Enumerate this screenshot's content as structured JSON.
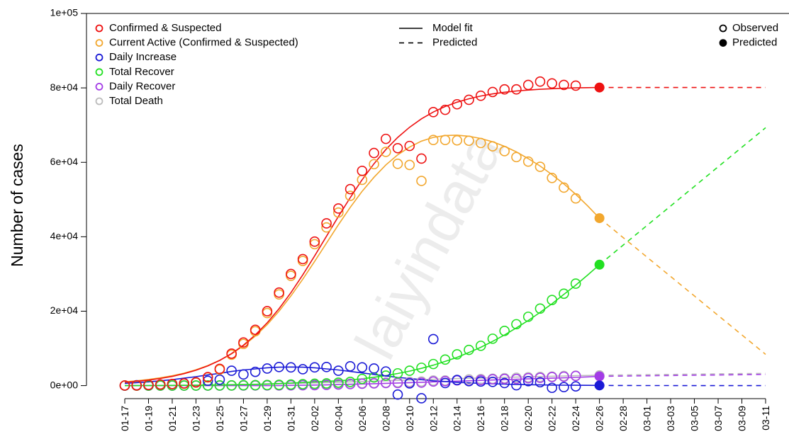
{
  "chart_data": {
    "type": "line",
    "y_label": "Number of cases",
    "watermark": "laiyindata",
    "categories": [
      "01-17",
      null,
      "01-19",
      null,
      "01-21",
      null,
      "01-23",
      null,
      "01-25",
      null,
      "01-27",
      null,
      "01-29",
      null,
      "01-31",
      null,
      "02-02",
      null,
      "02-04",
      null,
      "02-06",
      null,
      "02-08",
      null,
      "02-10",
      null,
      "02-12",
      null,
      "02-14",
      null,
      "02-16",
      null,
      "02-18",
      null,
      "02-20",
      null,
      "02-22",
      null,
      "02-24",
      null,
      "02-26",
      null,
      "02-28",
      null,
      "03-01",
      null,
      "03-03",
      null,
      "03-05",
      null,
      "03-07",
      null,
      "03-09",
      null,
      "03-11"
    ],
    "ylim": [
      -3500,
      100000
    ],
    "yticks": [
      {
        "value": 0,
        "label": "0e+00"
      },
      {
        "value": 20000,
        "label": "2e+04"
      },
      {
        "value": 40000,
        "label": "4e+04"
      },
      {
        "value": 60000,
        "label": "6e+04"
      },
      {
        "value": 80000,
        "label": "8e+04"
      },
      {
        "value": 100000,
        "label": "1e+05"
      }
    ],
    "line_legend": [
      "Model fit",
      "Predicted"
    ],
    "point_legend": [
      "Observed",
      "Predicted"
    ],
    "series": [
      {
        "name": "Confirmed & Suspected",
        "color": "#ee1111",
        "observed": [
          45,
          62,
          200,
          300,
          440,
          570,
          900,
          2300,
          4500,
          8600,
          11600,
          15000,
          20000,
          25000,
          30000,
          34000,
          38700,
          43600,
          47600,
          52800,
          57700,
          62500,
          66300,
          63800,
          64400,
          61000,
          73500,
          74100,
          75600,
          76800,
          77900,
          78900,
          79600,
          79600,
          80800,
          81700,
          81200,
          80800,
          80600,
          null,
          null,
          null,
          null,
          null,
          null,
          null,
          null,
          null,
          null,
          null,
          null,
          null,
          null,
          null,
          null,
          null
        ],
        "fit": [
          878,
          1140,
          1480,
          1920,
          2480,
          3210,
          4130,
          5300,
          6770,
          8610,
          10870,
          13610,
          16870,
          20660,
          24980,
          29750,
          34870,
          40150,
          45430,
          50540,
          55300,
          59620,
          63430,
          66690,
          69420,
          71690,
          73520,
          75000,
          76160,
          77080,
          77810,
          78380,
          78820,
          79160,
          79420,
          79620,
          79780,
          79900,
          80000,
          80070,
          80120,
          null,
          null,
          null,
          null,
          null,
          null,
          null,
          null,
          null,
          null,
          null,
          null,
          null,
          null
        ],
        "predicted": [
          null,
          null,
          null,
          null,
          null,
          null,
          null,
          null,
          null,
          null,
          null,
          null,
          null,
          null,
          null,
          null,
          null,
          null,
          null,
          null,
          null,
          null,
          null,
          null,
          null,
          null,
          null,
          null,
          null,
          null,
          null,
          null,
          null,
          null,
          null,
          null,
          null,
          null,
          null,
          null,
          80100,
          80100,
          80100,
          80100,
          80100,
          80100,
          80100,
          80100,
          80100,
          80100,
          80100,
          80100,
          80100,
          80100,
          80100
        ]
      },
      {
        "name": "Current Active (Confirmed & Suspected)",
        "color": "#f2a72e",
        "observed": [
          40,
          60,
          190,
          290,
          420,
          550,
          800,
          2200,
          4300,
          8300,
          11200,
          14600,
          19500,
          24500,
          29500,
          33500,
          38000,
          42500,
          46500,
          51000,
          55300,
          59500,
          62800,
          59600,
          59300,
          55000,
          66000,
          66000,
          65900,
          65800,
          65200,
          64300,
          63000,
          61400,
          60200,
          58800,
          55800,
          53200,
          50300,
          null,
          null,
          null,
          null,
          null,
          null,
          null,
          null,
          null,
          null,
          null,
          null,
          null,
          null,
          null,
          null,
          null
        ],
        "fit": [
          1000,
          1300,
          1650,
          2100,
          2650,
          3350,
          4250,
          5400,
          6800,
          8550,
          10700,
          13300,
          16400,
          20000,
          24100,
          28600,
          33400,
          38300,
          43200,
          47900,
          52200,
          56000,
          59300,
          62000,
          64100,
          65700,
          66700,
          67200,
          67300,
          67000,
          66400,
          65500,
          64300,
          62800,
          61000,
          59000,
          56700,
          54200,
          51400,
          48300,
          45000,
          null,
          null,
          null,
          null,
          null,
          null,
          null,
          null,
          null,
          null,
          null,
          null,
          null,
          null
        ],
        "predicted": [
          null,
          null,
          null,
          null,
          null,
          null,
          null,
          null,
          null,
          null,
          null,
          null,
          null,
          null,
          null,
          null,
          null,
          null,
          null,
          null,
          null,
          null,
          null,
          null,
          null,
          null,
          null,
          null,
          null,
          null,
          null,
          null,
          null,
          null,
          null,
          null,
          null,
          null,
          null,
          null,
          45000,
          42390,
          39770,
          37160,
          34540,
          31930,
          29310,
          26700,
          24090,
          21470,
          18860,
          16240,
          13630,
          11010,
          8400
        ]
      },
      {
        "name": "Daily Increase",
        "color": "#1a1ad6",
        "observed": [
          20,
          100,
          150,
          300,
          400,
          600,
          800,
          1300,
          1600,
          4000,
          3000,
          3700,
          4600,
          5000,
          4900,
          4400,
          4900,
          5000,
          4000,
          5200,
          4900,
          4600,
          3800,
          -2400,
          600,
          -3400,
          12500,
          700,
          1500,
          1200,
          1100,
          1000,
          700,
          100,
          1200,
          900,
          -600,
          -400,
          -200,
          null,
          null,
          null,
          null,
          null,
          null,
          null,
          null,
          null,
          null,
          null,
          null,
          null,
          null,
          null,
          null,
          null
        ],
        "fit": [
          600,
          800,
          1000,
          1300,
          1600,
          2000,
          2400,
          2900,
          3300,
          3800,
          4200,
          4500,
          4800,
          4950,
          5000,
          4950,
          4800,
          4500,
          4200,
          3800,
          3400,
          3000,
          2600,
          2200,
          1900,
          1600,
          1300,
          1100,
          900,
          750,
          600,
          500,
          400,
          320,
          250,
          200,
          160,
          120,
          90,
          70,
          50,
          null,
          null,
          null,
          null,
          null,
          null,
          null,
          null,
          null,
          null,
          null,
          null,
          null,
          null
        ],
        "predicted": [
          null,
          null,
          null,
          null,
          null,
          null,
          null,
          null,
          null,
          null,
          null,
          null,
          null,
          null,
          null,
          null,
          null,
          null,
          null,
          null,
          null,
          null,
          null,
          null,
          null,
          null,
          null,
          null,
          null,
          null,
          null,
          null,
          null,
          null,
          null,
          null,
          null,
          null,
          null,
          null,
          50,
          40,
          30,
          25,
          20,
          15,
          12,
          10,
          8,
          6,
          5,
          4,
          3,
          2,
          2
        ]
      },
      {
        "name": "Total Recover",
        "color": "#22e022",
        "observed": [
          0,
          0,
          0,
          25,
          25,
          30,
          35,
          40,
          50,
          60,
          100,
          120,
          150,
          200,
          300,
          400,
          500,
          600,
          800,
          1000,
          1800,
          2200,
          2700,
          3300,
          4000,
          4800,
          5800,
          7000,
          8400,
          9600,
          10700,
          12600,
          14700,
          16500,
          18500,
          20700,
          23000,
          24700,
          27400,
          null,
          null,
          null,
          null,
          null,
          null,
          null,
          null,
          null,
          null,
          null,
          null,
          null,
          null,
          null,
          null,
          null
        ],
        "fit": [
          0,
          10,
          20,
          30,
          50,
          70,
          100,
          130,
          170,
          220,
          280,
          350,
          440,
          550,
          680,
          830,
          1000,
          1150,
          1300,
          1500,
          1850,
          2250,
          2700,
          3250,
          3900,
          4650,
          5500,
          6500,
          7600,
          8900,
          10300,
          11900,
          13600,
          15500,
          17500,
          19700,
          22000,
          24500,
          27000,
          29700,
          32500,
          null,
          null,
          null,
          null,
          null,
          null,
          null,
          null,
          null,
          null,
          null,
          null,
          null,
          null
        ],
        "predicted": [
          null,
          null,
          null,
          null,
          null,
          null,
          null,
          null,
          null,
          null,
          null,
          null,
          null,
          null,
          null,
          null,
          null,
          null,
          null,
          null,
          null,
          null,
          null,
          null,
          null,
          null,
          null,
          null,
          null,
          null,
          null,
          null,
          null,
          null,
          null,
          null,
          null,
          null,
          null,
          null,
          32500,
          35130,
          37760,
          40390,
          43010,
          45640,
          48270,
          50900,
          53530,
          56160,
          58790,
          61410,
          64040,
          66670,
          69300
        ]
      },
      {
        "name": "Daily Recover",
        "color": "#a33ce6",
        "observed": [
          0,
          0,
          0,
          0,
          0,
          5,
          5,
          10,
          10,
          20,
          30,
          40,
          50,
          60,
          70,
          100,
          120,
          200,
          300,
          400,
          500,
          600,
          700,
          700,
          750,
          800,
          1100,
          1200,
          1400,
          1300,
          1500,
          1700,
          1800,
          1800,
          2000,
          2100,
          2300,
          2400,
          2600,
          null,
          null,
          null,
          null,
          null,
          null,
          null,
          null,
          null,
          null,
          null,
          null,
          null,
          null,
          null,
          null,
          null
        ],
        "fit": [
          0,
          0,
          0,
          0,
          0,
          0,
          0,
          0,
          0,
          0,
          0,
          0,
          0,
          0,
          50,
          100,
          150,
          200,
          280,
          360,
          440,
          520,
          610,
          700,
          800,
          900,
          1000,
          1100,
          1200,
          1300,
          1400,
          1500,
          1600,
          1700,
          1800,
          1900,
          2000,
          2100,
          2200,
          2350,
          2500,
          null,
          null,
          null,
          null,
          null,
          null,
          null,
          null,
          null,
          null,
          null,
          null,
          null,
          null
        ],
        "predicted": [
          null,
          null,
          null,
          null,
          null,
          null,
          null,
          null,
          null,
          null,
          null,
          null,
          null,
          null,
          null,
          null,
          null,
          null,
          null,
          null,
          null,
          null,
          null,
          null,
          null,
          null,
          null,
          null,
          null,
          null,
          null,
          null,
          null,
          null,
          null,
          null,
          null,
          null,
          null,
          null,
          2500,
          2540,
          2570,
          2610,
          2640,
          2680,
          2710,
          2750,
          2790,
          2820,
          2860,
          2890,
          2930,
          2960,
          3000
        ]
      },
      {
        "name": "Total Death",
        "color": "#bcbcbc",
        "observed": [
          0,
          0,
          0,
          6,
          9,
          17,
          25,
          41,
          56,
          80,
          106,
          132,
          170,
          213,
          259,
          304,
          361,
          425,
          490,
          563,
          636,
          722,
          811,
          908,
          1016,
          1113,
          1367,
          1380,
          1523,
          1665,
          1770,
          1868,
          2004,
          2118,
          2236,
          2345,
          2442,
          2592,
          2663,
          null,
          null,
          null,
          null,
          null,
          null,
          null,
          null,
          null,
          null,
          null,
          null,
          null,
          null,
          null,
          null,
          null
        ],
        "fit": [
          20,
          30,
          40,
          60,
          80,
          110,
          140,
          180,
          220,
          260,
          310,
          360,
          420,
          490,
          560,
          640,
          720,
          810,
          900,
          1000,
          1100,
          1200,
          1300,
          1400,
          1500,
          1600,
          1700,
          1800,
          1880,
          1960,
          2040,
          2120,
          2200,
          2280,
          2360,
          2440,
          2520,
          2590,
          2660,
          2730,
          2800,
          null,
          null,
          null,
          null,
          null,
          null,
          null,
          null,
          null,
          null,
          null,
          null,
          null,
          null
        ],
        "predicted": [
          null,
          null,
          null,
          null,
          null,
          null,
          null,
          null,
          null,
          null,
          null,
          null,
          null,
          null,
          null,
          null,
          null,
          null,
          null,
          null,
          null,
          null,
          null,
          null,
          null,
          null,
          null,
          null,
          null,
          null,
          null,
          null,
          null,
          null,
          null,
          null,
          null,
          null,
          null,
          null,
          2800,
          2840,
          2870,
          2910,
          2940,
          2980,
          3010,
          3050,
          3090,
          3120,
          3160,
          3190,
          3230,
          3260,
          3300
        ]
      }
    ]
  }
}
